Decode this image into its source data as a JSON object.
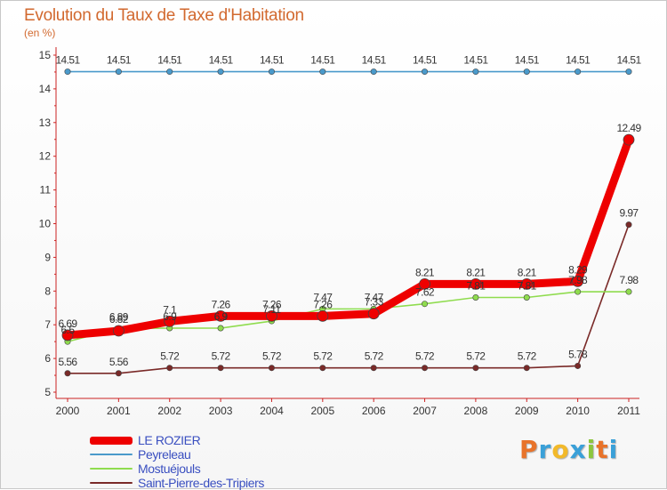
{
  "header": {
    "title": "Evolution du Taux de Taxe d'Habitation",
    "subtitle": "(en %)"
  },
  "chart_data": {
    "type": "line",
    "title": "Evolution du Taux de Taxe d'Habitation",
    "ylabel": "(en %)",
    "xlabel": "",
    "x": [
      "2000",
      "2001",
      "2002",
      "2003",
      "2004",
      "2005",
      "2006",
      "2007",
      "2008",
      "2009",
      "2010",
      "2011"
    ],
    "ylim": [
      5,
      15
    ],
    "yticks": [
      "5",
      "6",
      "7",
      "8",
      "9",
      "10",
      "11",
      "12",
      "13",
      "14",
      "15"
    ],
    "grid": false,
    "legend_position": "bottom-left",
    "series": [
      {
        "name": "LE ROZIER",
        "color": "#ee0000",
        "values": [
          6.69,
          6.82,
          7.1,
          7.26,
          7.26,
          7.26,
          7.33,
          8.21,
          8.21,
          8.21,
          8.29,
          12.49
        ],
        "labels": [
          "6.69",
          "6.82",
          "7.1",
          "7.26",
          "7.26",
          "7.26",
          "7.33",
          "8.21",
          "8.21",
          "8.21",
          "8.29",
          "12.49"
        ]
      },
      {
        "name": "Peyreleau",
        "color": "#4a9acb",
        "values": [
          14.51,
          14.51,
          14.51,
          14.51,
          14.51,
          14.51,
          14.51,
          14.51,
          14.51,
          14.51,
          14.51,
          14.51
        ],
        "labels": [
          "14.51",
          "14.51",
          "14.51",
          "14.51",
          "14.51",
          "14.51",
          "14.51",
          "14.51",
          "14.51",
          "14.51",
          "14.51",
          "14.51"
        ]
      },
      {
        "name": "Mostuéjouls",
        "color": "#8fdc4e",
        "values": [
          6.5,
          6.89,
          6.9,
          6.9,
          7.11,
          7.47,
          7.47,
          7.62,
          7.81,
          7.81,
          7.98,
          7.98
        ],
        "labels": [
          "6.5",
          "6.89",
          "6.9",
          "6.9",
          "7.11",
          "7.47",
          "7.47",
          "7.62",
          "7.81",
          "7.81",
          "7.98",
          "7.98"
        ]
      },
      {
        "name": "Saint-Pierre-des-Tripiers",
        "color": "#7a2a28",
        "values": [
          5.56,
          5.56,
          5.72,
          5.72,
          5.72,
          5.72,
          5.72,
          5.72,
          5.72,
          5.72,
          5.78,
          9.97
        ],
        "labels": [
          "5.56",
          "5.56",
          "5.72",
          "5.72",
          "5.72",
          "5.72",
          "5.72",
          "5.72",
          "5.72",
          "5.72",
          "5.78",
          "9.97"
        ]
      }
    ]
  },
  "legend": {
    "items": [
      {
        "label": "LE ROZIER",
        "color": "#ee0000"
      },
      {
        "label": "Peyreleau",
        "color": "#4a9acb"
      },
      {
        "label": "Mostuéjouls",
        "color": "#8fdc4e"
      },
      {
        "label": "Saint-Pierre-des-Tripiers",
        "color": "#7a2a28"
      }
    ]
  },
  "logo": {
    "letters": [
      "P",
      "r",
      "o",
      "x",
      "i",
      "t",
      "i"
    ],
    "colors": [
      "#e8732a",
      "#3aa0d8",
      "#f2b92a",
      "#3aa0d8",
      "#8cc63e",
      "#e8732a",
      "#3aa0d8"
    ]
  }
}
